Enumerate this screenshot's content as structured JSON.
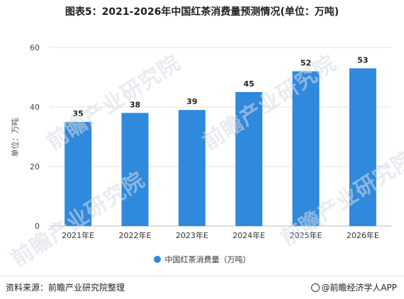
{
  "chart_data": {
    "type": "bar",
    "title": "图表5：2021-2026年中国红茶消费量预测情况(单位：万吨)",
    "ylabel": "单位：万吨",
    "categories": [
      "2021年E",
      "2022年E",
      "2023年E",
      "2024年E",
      "2025年E",
      "2026年E"
    ],
    "series": [
      {
        "name": "中国红茶消费量（万吨）",
        "values": [
          35,
          38,
          39,
          45,
          52,
          53
        ]
      }
    ],
    "ylim": [
      0,
      60
    ],
    "yticks": [
      "0",
      "20",
      "40",
      "60"
    ],
    "grid": true,
    "legend": "bottom",
    "bar_color": "#2f89dc"
  },
  "watermark": {
    "text": "前瞻产业研究院"
  },
  "footer": {
    "source": "资料来源：前瞻产业研究院整理",
    "brand": "@前瞻经济学人APP"
  }
}
